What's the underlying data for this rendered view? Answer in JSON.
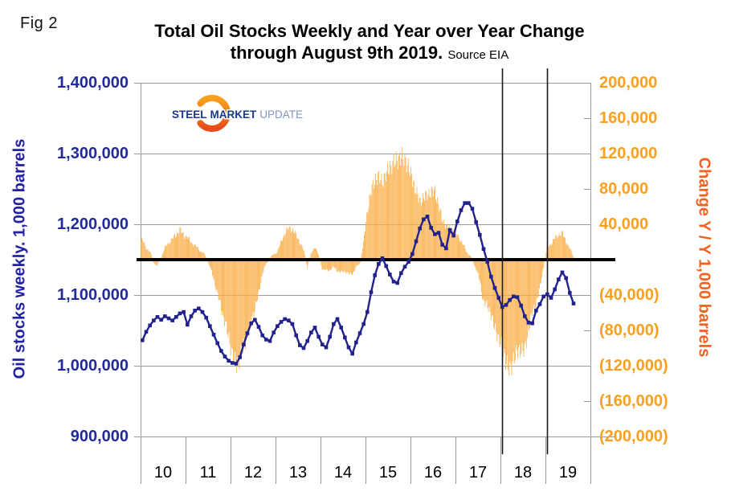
{
  "fig_label": "Fig 2",
  "title": {
    "line1": "Total Oil Stocks Weekly and Year over Year Change",
    "line2_bold": "through August 9th 2019.",
    "source": "Source EIA"
  },
  "logo": {
    "word1": "STEEL",
    "word2": "MARKET",
    "word3": "UPDATE"
  },
  "left_axis": {
    "title": "Oil stocks weekly. 1,000 barrels",
    "tick_labels": [
      "1,400,000",
      "1,300,000",
      "1,200,000",
      "1,100,000",
      "1,000,000",
      "900,000"
    ]
  },
  "right_axis": {
    "title": "Change Y / Y 1,000 barrels",
    "tick_labels": [
      "200,000",
      "160,000",
      "120,000",
      "80,000",
      "40,000",
      "(40,000)",
      "(80,000)",
      "(120,000)",
      "(160,000)",
      "(200,000)"
    ]
  },
  "x_axis": {
    "tick_labels": [
      "10",
      "11",
      "12",
      "13",
      "14",
      "15",
      "16",
      "17",
      "18",
      "19"
    ]
  },
  "colors": {
    "line": "#22228f",
    "bars": "#f9ad44",
    "left_text": "#212a96",
    "right_text": "#f9a01e",
    "right_title": "#f2611d",
    "grid": "#9b9b9b",
    "zero_line": "#000000",
    "marker_lines": "#1a1a1a"
  },
  "chart_data": {
    "type": "combo",
    "title": "Total Oil Stocks Weekly and Year over Year Change through August 9th 2019",
    "source": "EIA",
    "frequency": "monthly estimates read from chart, Jan 2010 - Aug 2019",
    "x_categories": [
      "10",
      "11",
      "12",
      "13",
      "14",
      "15",
      "16",
      "17",
      "18",
      "19"
    ],
    "left_ylim": [
      900000,
      1400000
    ],
    "right_ylim": [
      -200000,
      200000
    ],
    "grid": "horizontal every 100,000 (left axis)",
    "legend_position": "none (dual colored axes)",
    "zero_line": {
      "axis": "right",
      "value": 0
    },
    "vertical_marker_lines_at": [
      "start of 2018",
      "start of 2019"
    ],
    "series": [
      {
        "name": "Oil stocks weekly, 1,000 barrels",
        "type": "line",
        "axis": "left",
        "color": "#22228f",
        "values": [
          1036000,
          1048000,
          1057000,
          1064000,
          1069000,
          1065000,
          1070000,
          1067000,
          1064000,
          1069000,
          1074000,
          1076000,
          1058000,
          1070000,
          1078000,
          1081000,
          1076000,
          1068000,
          1056000,
          1044000,
          1032000,
          1021000,
          1013000,
          1007000,
          1004000,
          1003000,
          1012000,
          1030000,
          1046000,
          1060000,
          1065000,
          1055000,
          1043000,
          1037000,
          1035000,
          1047000,
          1056000,
          1062000,
          1066000,
          1064000,
          1059000,
          1043000,
          1029000,
          1025000,
          1035000,
          1047000,
          1054000,
          1041000,
          1030000,
          1026000,
          1041000,
          1059000,
          1066000,
          1054000,
          1040000,
          1026000,
          1017000,
          1033000,
          1046000,
          1059000,
          1076000,
          1104000,
          1128000,
          1144000,
          1152000,
          1141000,
          1129000,
          1119000,
          1117000,
          1131000,
          1140000,
          1147000,
          1158000,
          1176000,
          1194000,
          1207000,
          1211000,
          1195000,
          1186000,
          1188000,
          1171000,
          1166000,
          1192000,
          1184000,
          1204000,
          1220000,
          1230000,
          1230000,
          1222000,
          1203000,
          1185000,
          1165000,
          1147000,
          1126000,
          1110000,
          1096000,
          1083000,
          1086000,
          1093000,
          1098000,
          1097000,
          1085000,
          1070000,
          1061000,
          1060000,
          1078000,
          1087000,
          1098000,
          1101000,
          1096000,
          1108000,
          1122000,
          1132000,
          1124000,
          1103000,
          1088000
        ]
      },
      {
        "name": "Change Y / Y, 1,000 barrels",
        "type": "bar",
        "axis": "right",
        "color": "#f9ad44",
        "values": [
          22000,
          14000,
          8000,
          -2000,
          -8000,
          4000,
          13000,
          19000,
          24000,
          28000,
          34000,
          28000,
          25000,
          20000,
          16000,
          12000,
          8000,
          3000,
          -8000,
          -22000,
          -38000,
          -55000,
          -70000,
          -88000,
          -108000,
          -119000,
          -112000,
          -97000,
          -85000,
          -70000,
          -56000,
          -38000,
          -16000,
          -5000,
          2000,
          5000,
          10000,
          20000,
          30000,
          36000,
          34000,
          28000,
          20000,
          10000,
          -8000,
          6000,
          16000,
          4000,
          -10000,
          -13000,
          -11000,
          -9000,
          -12000,
          -15000,
          -12000,
          -17000,
          -15000,
          -10000,
          -3000,
          20000,
          55000,
          78000,
          90000,
          94000,
          88000,
          97000,
          104000,
          110000,
          113000,
          116000,
          114000,
          104000,
          92000,
          77000,
          66000,
          70000,
          74000,
          76000,
          78000,
          62000,
          45000,
          38000,
          36000,
          33000,
          29000,
          21000,
          13000,
          6000,
          0,
          -10000,
          -25000,
          -48000,
          -52000,
          -62000,
          -78000,
          -89000,
          -100000,
          -115000,
          -126000,
          -112000,
          -104000,
          -102000,
          -103000,
          -78000,
          -60000,
          -50000,
          -33000,
          -8000,
          14000,
          18000,
          24000,
          28000,
          30000,
          21000,
          12000,
          4000
        ]
      }
    ]
  }
}
